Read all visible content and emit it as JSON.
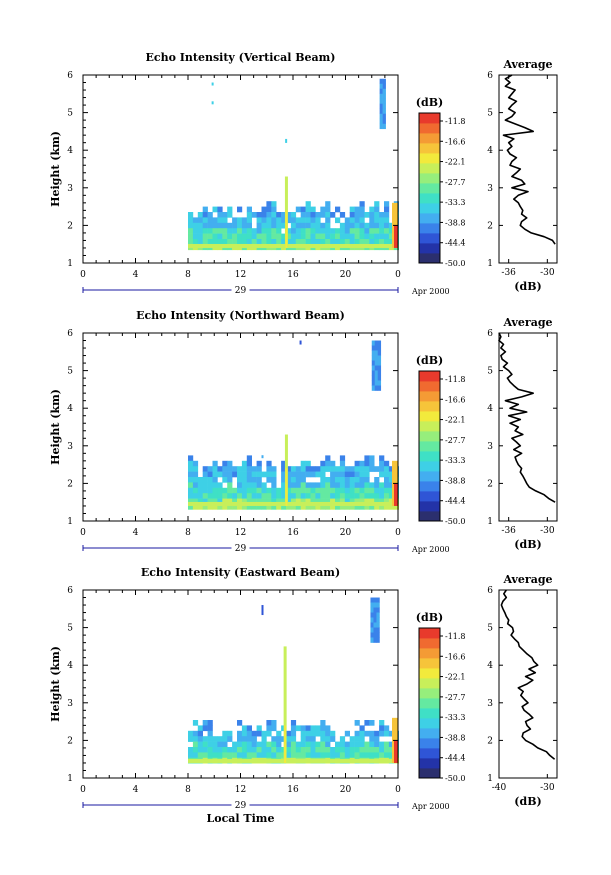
{
  "colors": {
    "scale": [
      "#2b2f6e",
      "#2333a8",
      "#2f55d6",
      "#3a82ea",
      "#43aef0",
      "#3ed0e6",
      "#3fe0c6",
      "#64e9a1",
      "#96ee7c",
      "#c8ef5a",
      "#f2ea3c",
      "#f6c43a",
      "#f49b35",
      "#f06a30",
      "#e83a2c"
    ],
    "axis": "#000000",
    "timeline": "#1a1aa0"
  },
  "colorbar": {
    "unit": "(dB)",
    "tick_labels": [
      "-11.8",
      "-16.6",
      "-22.1",
      "-27.7",
      "-33.3",
      "-38.8",
      "-44.4",
      "-50.0"
    ]
  },
  "x_axis": {
    "ticks": [
      "0",
      "4",
      "8",
      "12",
      "16",
      "20",
      "0"
    ],
    "date_day": "29",
    "date_suffix": "Apr 2000",
    "label": "Local Time"
  },
  "y_axis": {
    "label": "Height (km)",
    "ticks": [
      "1",
      "2",
      "3",
      "4",
      "5",
      "6"
    ]
  },
  "profile": {
    "title": "Average",
    "xlabel": "(dB)"
  },
  "panels": [
    {
      "title": "Echo Intensity (Vertical Beam)",
      "profile_xticks": [
        "-36",
        "-30"
      ]
    },
    {
      "title": "Echo Intensity (Northward Beam)",
      "profile_xticks": [
        "-36",
        "-30"
      ]
    },
    {
      "title": "Echo Intensity (Eastward Beam)",
      "profile_xticks": [
        "-40",
        "-30"
      ]
    }
  ],
  "chart_data": [
    {
      "type": "heatmap",
      "title": "Echo Intensity (Vertical Beam)",
      "xlabel": "",
      "ylabel": "Height (km)",
      "xlim": [
        0,
        24
      ],
      "ylim": [
        1,
        6
      ],
      "value_range_dB": [
        -50.0,
        -11.8
      ],
      "echo_layer": {
        "start_hour": 8.0,
        "end_hour": 24,
        "height_km": [
          1.4,
          2.5
        ]
      },
      "upper_echo": {
        "start_hour": 22.6,
        "end_hour": 23.0,
        "height_km": [
          4.6,
          5.9
        ]
      },
      "spikes_hours": [
        15.5
      ],
      "average_profile": {
        "title": "Average",
        "xlabel": "(dB)",
        "xlim": [
          -37.5,
          -28.5
        ],
        "height_km": [
          1.5,
          1.6,
          1.7,
          1.8,
          1.9,
          2.0,
          2.1,
          2.2,
          2.3,
          2.4,
          2.5,
          2.6,
          2.7,
          2.8,
          2.9,
          3.0,
          3.1,
          3.2,
          3.3,
          3.4,
          3.5,
          3.6,
          3.7,
          3.8,
          3.9,
          4.0,
          4.1,
          4.2,
          4.3,
          4.4,
          4.5,
          4.6,
          4.7,
          4.8,
          4.9,
          5.0,
          5.1,
          5.2,
          5.3,
          5.4,
          5.5,
          5.6,
          5.7,
          5.8,
          5.9,
          6.0
        ],
        "value_dB": [
          -28.8,
          -29.2,
          -30.5,
          -32.5,
          -33.5,
          -34.2,
          -34.0,
          -33.2,
          -34.0,
          -33.8,
          -34.2,
          -34.5,
          -35.2,
          -34.5,
          -33.0,
          -35.5,
          -33.5,
          -34.0,
          -35.5,
          -34.8,
          -34.2,
          -35.8,
          -35.5,
          -34.8,
          -35.8,
          -36.2,
          -35.5,
          -36.0,
          -35.2,
          -36.8,
          -32.2,
          -33.5,
          -35.0,
          -36.5,
          -35.5,
          -35.0,
          -36.0,
          -35.5,
          -34.8,
          -36.0,
          -35.5,
          -35.0,
          -36.5,
          -35.8,
          -36.5,
          -35.5
        ]
      }
    },
    {
      "type": "heatmap",
      "title": "Echo Intensity (Northward Beam)",
      "xlabel": "",
      "ylabel": "Height (km)",
      "xlim": [
        0,
        24
      ],
      "ylim": [
        1,
        6
      ],
      "value_range_dB": [
        -50.0,
        -11.8
      ],
      "echo_layer": {
        "start_hour": 8.0,
        "end_hour": 24,
        "height_km": [
          1.4,
          2.6
        ]
      },
      "upper_echo": {
        "start_hour": 22.0,
        "end_hour": 22.6,
        "height_km": [
          4.6,
          5.8
        ]
      },
      "spikes_hours": [
        15.5
      ],
      "average_profile": {
        "title": "Average",
        "xlabel": "(dB)",
        "xlim": [
          -37.5,
          -28.5
        ],
        "height_km": [
          1.5,
          1.6,
          1.7,
          1.8,
          1.9,
          2.0,
          2.1,
          2.2,
          2.3,
          2.4,
          2.5,
          2.6,
          2.7,
          2.8,
          2.9,
          3.0,
          3.1,
          3.2,
          3.3,
          3.4,
          3.5,
          3.6,
          3.7,
          3.8,
          3.9,
          4.0,
          4.1,
          4.2,
          4.3,
          4.4,
          4.5,
          4.6,
          4.7,
          4.8,
          4.9,
          5.0,
          5.1,
          5.2,
          5.3,
          5.4,
          5.5,
          5.6,
          5.7,
          5.8,
          5.9,
          6.0
        ],
        "value_dB": [
          -28.8,
          -29.8,
          -30.5,
          -31.8,
          -32.8,
          -33.2,
          -33.5,
          -33.8,
          -34.2,
          -34.0,
          -34.5,
          -34.8,
          -35.0,
          -34.0,
          -35.2,
          -34.2,
          -34.8,
          -35.5,
          -33.8,
          -35.0,
          -34.5,
          -35.8,
          -34.2,
          -36.0,
          -33.2,
          -35.8,
          -34.5,
          -36.5,
          -34.0,
          -32.2,
          -34.5,
          -35.2,
          -35.8,
          -36.2,
          -35.5,
          -36.0,
          -36.8,
          -36.2,
          -37.0,
          -37.2,
          -36.5,
          -37.2,
          -36.8,
          -37.5,
          -37.2,
          -37.5
        ]
      }
    },
    {
      "type": "heatmap",
      "title": "Echo Intensity (Eastward Beam)",
      "xlabel": "Local Time",
      "ylabel": "Height (km)",
      "xlim": [
        0,
        24
      ],
      "ylim": [
        1,
        6
      ],
      "value_range_dB": [
        -50.0,
        -11.8
      ],
      "echo_layer": {
        "start_hour": 8.0,
        "end_hour": 24,
        "height_km": [
          1.4,
          2.4
        ]
      },
      "upper_echo": {
        "start_hour": 21.9,
        "end_hour": 22.4,
        "height_km": [
          4.7,
          5.8
        ]
      },
      "spikes_hours": [
        15.4
      ],
      "average_profile": {
        "title": "Average",
        "xlabel": "(dB)",
        "xlim": [
          -40,
          -28
        ],
        "height_km": [
          1.5,
          1.6,
          1.7,
          1.8,
          1.9,
          2.0,
          2.1,
          2.2,
          2.3,
          2.4,
          2.5,
          2.6,
          2.7,
          2.8,
          2.9,
          3.0,
          3.1,
          3.2,
          3.3,
          3.4,
          3.5,
          3.6,
          3.7,
          3.8,
          3.9,
          4.0,
          4.1,
          4.2,
          4.3,
          4.4,
          4.5,
          4.6,
          4.7,
          4.8,
          4.9,
          5.0,
          5.1,
          5.2,
          5.3,
          5.4,
          5.5,
          5.6,
          5.7,
          5.8,
          5.9,
          6.0
        ],
        "value_dB": [
          -28.5,
          -29.5,
          -30.2,
          -32.0,
          -33.0,
          -34.5,
          -35.2,
          -35.0,
          -33.5,
          -34.2,
          -34.5,
          -33.0,
          -33.8,
          -34.8,
          -35.2,
          -34.0,
          -34.8,
          -35.5,
          -35.0,
          -36.0,
          -34.2,
          -33.0,
          -34.5,
          -32.5,
          -33.8,
          -32.0,
          -32.8,
          -33.2,
          -34.2,
          -35.0,
          -35.8,
          -36.0,
          -36.8,
          -37.5,
          -37.0,
          -37.2,
          -38.2,
          -38.0,
          -38.5,
          -38.8,
          -39.2,
          -39.5,
          -39.2,
          -38.5,
          -39.0,
          -38.5
        ]
      }
    }
  ]
}
